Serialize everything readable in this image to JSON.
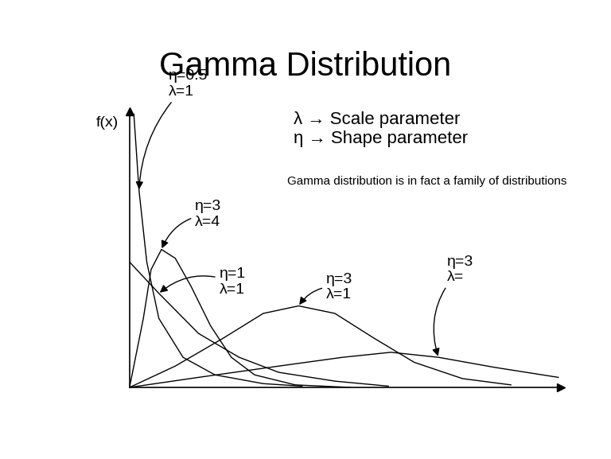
{
  "chart_data": {
    "type": "line",
    "title": "Gamma Distribution",
    "y_label": "f(x)",
    "annotations": [
      "λ → Scale parameter",
      "η → Shape parameter",
      "Gamma distribution is in fact a family of distributions"
    ],
    "xlim": [
      0,
      5
    ],
    "ylim": [
      0,
      2.2
    ],
    "tick_labels": false,
    "grid": false,
    "series": [
      {
        "name": "η=0.5\nλ=1",
        "color": "#000000",
        "x": [
          0.05,
          0.11,
          0.2,
          0.34,
          0.62,
          0.99,
          1.55,
          2.0
        ],
        "values": [
          2.18,
          1.57,
          1.0,
          0.55,
          0.24,
          0.1,
          0.03,
          0.01
        ]
      },
      {
        "name": "η=3\nλ=4",
        "color": "#000000",
        "x": [
          0.0,
          0.16,
          0.25,
          0.37,
          0.53,
          0.71,
          0.94,
          1.18,
          1.45,
          1.92,
          2.56
        ],
        "values": [
          0.0,
          0.55,
          0.94,
          1.1,
          1.03,
          0.81,
          0.49,
          0.24,
          0.1,
          0.02,
          0.0
        ]
      },
      {
        "name": "η=1\nλ=1",
        "color": "#000000",
        "x": [
          0.0,
          0.34,
          0.8,
          1.27,
          1.73,
          2.38,
          3.0
        ],
        "values": [
          1.0,
          0.75,
          0.43,
          0.24,
          0.12,
          0.05,
          0.01
        ]
      },
      {
        "name": "η=3\nλ=1",
        "color": "#000000",
        "x": [
          0.0,
          0.53,
          1.08,
          1.55,
          1.96,
          2.38,
          2.84,
          3.3,
          3.86,
          4.42
        ],
        "values": [
          0.0,
          0.17,
          0.39,
          0.59,
          0.65,
          0.59,
          0.39,
          0.2,
          0.07,
          0.02
        ]
      },
      {
        "name": "η=3\nλ=",
        "color": "#000000",
        "x": [
          0.0,
          0.8,
          1.73,
          2.47,
          3.03,
          3.58,
          4.23,
          4.97
        ],
        "values": [
          0.0,
          0.08,
          0.17,
          0.24,
          0.28,
          0.24,
          0.16,
          0.08
        ]
      }
    ]
  }
}
